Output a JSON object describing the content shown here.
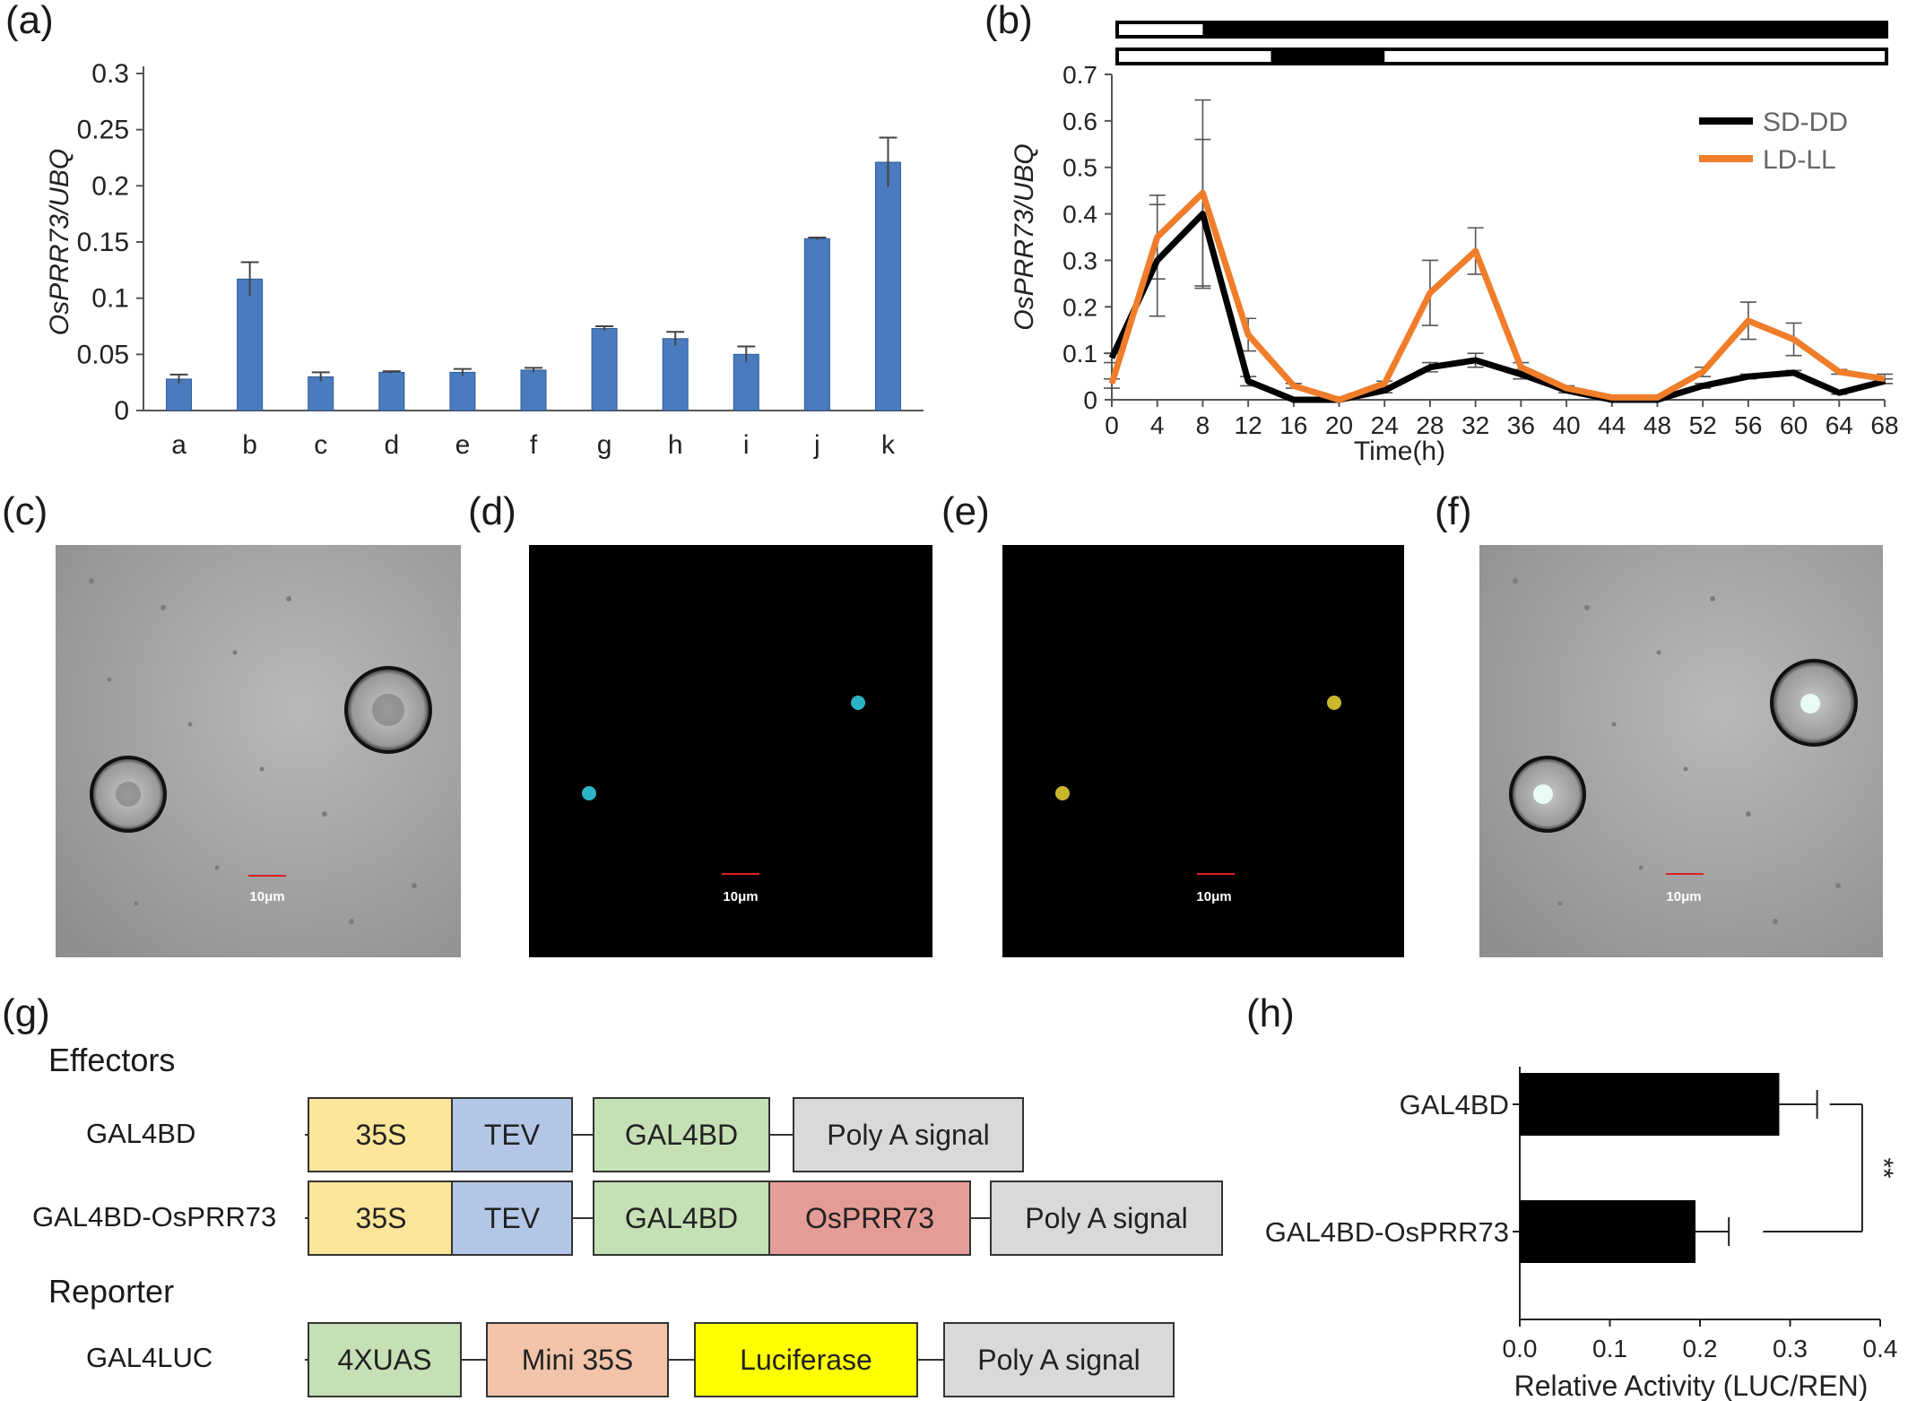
{
  "panels": {
    "a": {
      "label": "(a)"
    },
    "b": {
      "label": "(b)"
    },
    "c": {
      "label": "(c)",
      "scale_text": "10μm"
    },
    "d": {
      "label": "(d)",
      "scale_text": "10μm"
    },
    "e": {
      "label": "(e)",
      "scale_text": "10μm"
    },
    "f": {
      "label": "(f)",
      "scale_text": "10μm"
    },
    "g": {
      "label": "(g)"
    },
    "h": {
      "label": "(h)"
    }
  },
  "chart_data": [
    {
      "id": "a",
      "type": "bar",
      "ylabel": "OsPRR73/UBQ",
      "ylim": [
        0,
        0.3
      ],
      "yticks": [
        "0",
        "0.05",
        "0.1",
        "0.15",
        "0.2",
        "0.25",
        "0.3"
      ],
      "categories": [
        "a",
        "b",
        "c",
        "d",
        "e",
        "f",
        "g",
        "h",
        "i",
        "j",
        "k"
      ],
      "values": [
        0.028,
        0.117,
        0.03,
        0.034,
        0.034,
        0.036,
        0.073,
        0.064,
        0.05,
        0.153,
        0.221
      ],
      "errors": [
        0.004,
        0.015,
        0.004,
        0.001,
        0.003,
        0.002,
        0.002,
        0.006,
        0.007,
        0.001,
        0.022
      ],
      "color": "#4a7bbf"
    },
    {
      "id": "b",
      "type": "line",
      "xlabel": "Time(h)",
      "ylabel": "OsPRR73/UBQ",
      "ylim": [
        0,
        0.7
      ],
      "yticks": [
        "0",
        "0.1",
        "0.2",
        "0.3",
        "0.4",
        "0.5",
        "0.6",
        "0.7"
      ],
      "x": [
        0,
        4,
        8,
        12,
        16,
        20,
        24,
        28,
        32,
        36,
        40,
        44,
        48,
        52,
        56,
        60,
        64,
        68
      ],
      "series": [
        {
          "name": "SD-DD",
          "color": "#000000",
          "values": [
            0.09,
            0.3,
            0.4,
            0.04,
            0.0,
            0.0,
            0.02,
            0.07,
            0.085,
            0.055,
            0.02,
            0.0,
            0.0,
            0.03,
            0.05,
            0.058,
            0.015,
            0.04
          ],
          "errors": [
            0.01,
            0.12,
            0.16,
            0.01,
            0.0,
            0.0,
            0.005,
            0.01,
            0.015,
            0.01,
            0.005,
            0.0,
            0.0,
            0.005,
            0.005,
            0.005,
            0.003,
            0.005
          ]
        },
        {
          "name": "LD-LL",
          "color": "#ef7d2a",
          "values": [
            0.035,
            0.35,
            0.445,
            0.14,
            0.03,
            0.0,
            0.035,
            0.23,
            0.32,
            0.07,
            0.025,
            0.005,
            0.005,
            0.06,
            0.17,
            0.13,
            0.06,
            0.045
          ],
          "errors": [
            0.01,
            0.09,
            0.2,
            0.035,
            0.005,
            0.0,
            0.005,
            0.07,
            0.05,
            0.01,
            0.005,
            0.0,
            0.0,
            0.01,
            0.04,
            0.035,
            0.005,
            0.01
          ]
        }
      ],
      "legend_position": "top-right"
    },
    {
      "id": "h",
      "type": "bar",
      "orientation": "horizontal",
      "xlabel": "Relative Activity (LUC/REN)",
      "xlim": [
        0,
        0.4
      ],
      "xticks": [
        "0.0",
        "0.1",
        "0.2",
        "0.3",
        "0.4"
      ],
      "categories": [
        "GAL4BD",
        "GAL4BD-OsPRR73"
      ],
      "values": [
        0.288,
        0.195
      ],
      "errors": [
        0.042,
        0.037
      ],
      "significance": "**",
      "color": "#000000"
    }
  ],
  "constructs": {
    "effectors_title": "Effectors",
    "reporter_title": "Reporter",
    "rows": [
      {
        "name": "GAL4BD",
        "parts": [
          "35S",
          "TEV",
          "GAL4BD",
          "Poly A signal"
        ]
      },
      {
        "name": "GAL4BD-OsPRR73",
        "parts": [
          "35S",
          "TEV",
          "GAL4BD",
          "OsPRR73",
          "Poly A signal"
        ]
      },
      {
        "name": "GAL4LUC",
        "parts": [
          "4XUAS",
          "Mini 35S",
          "Luciferase",
          "Poly A signal"
        ]
      }
    ],
    "colors": {
      "35S": "#fde59a",
      "TEV": "#b4c6e7",
      "GAL4BD": "#c5e0b4",
      "Poly A signal": "#d9d9d9",
      "OsPRR73": "#e59c96",
      "4XUAS": "#c5e0b4",
      "Mini 35S": "#f2c3a8",
      "Luciferase": "#ffff00"
    }
  }
}
